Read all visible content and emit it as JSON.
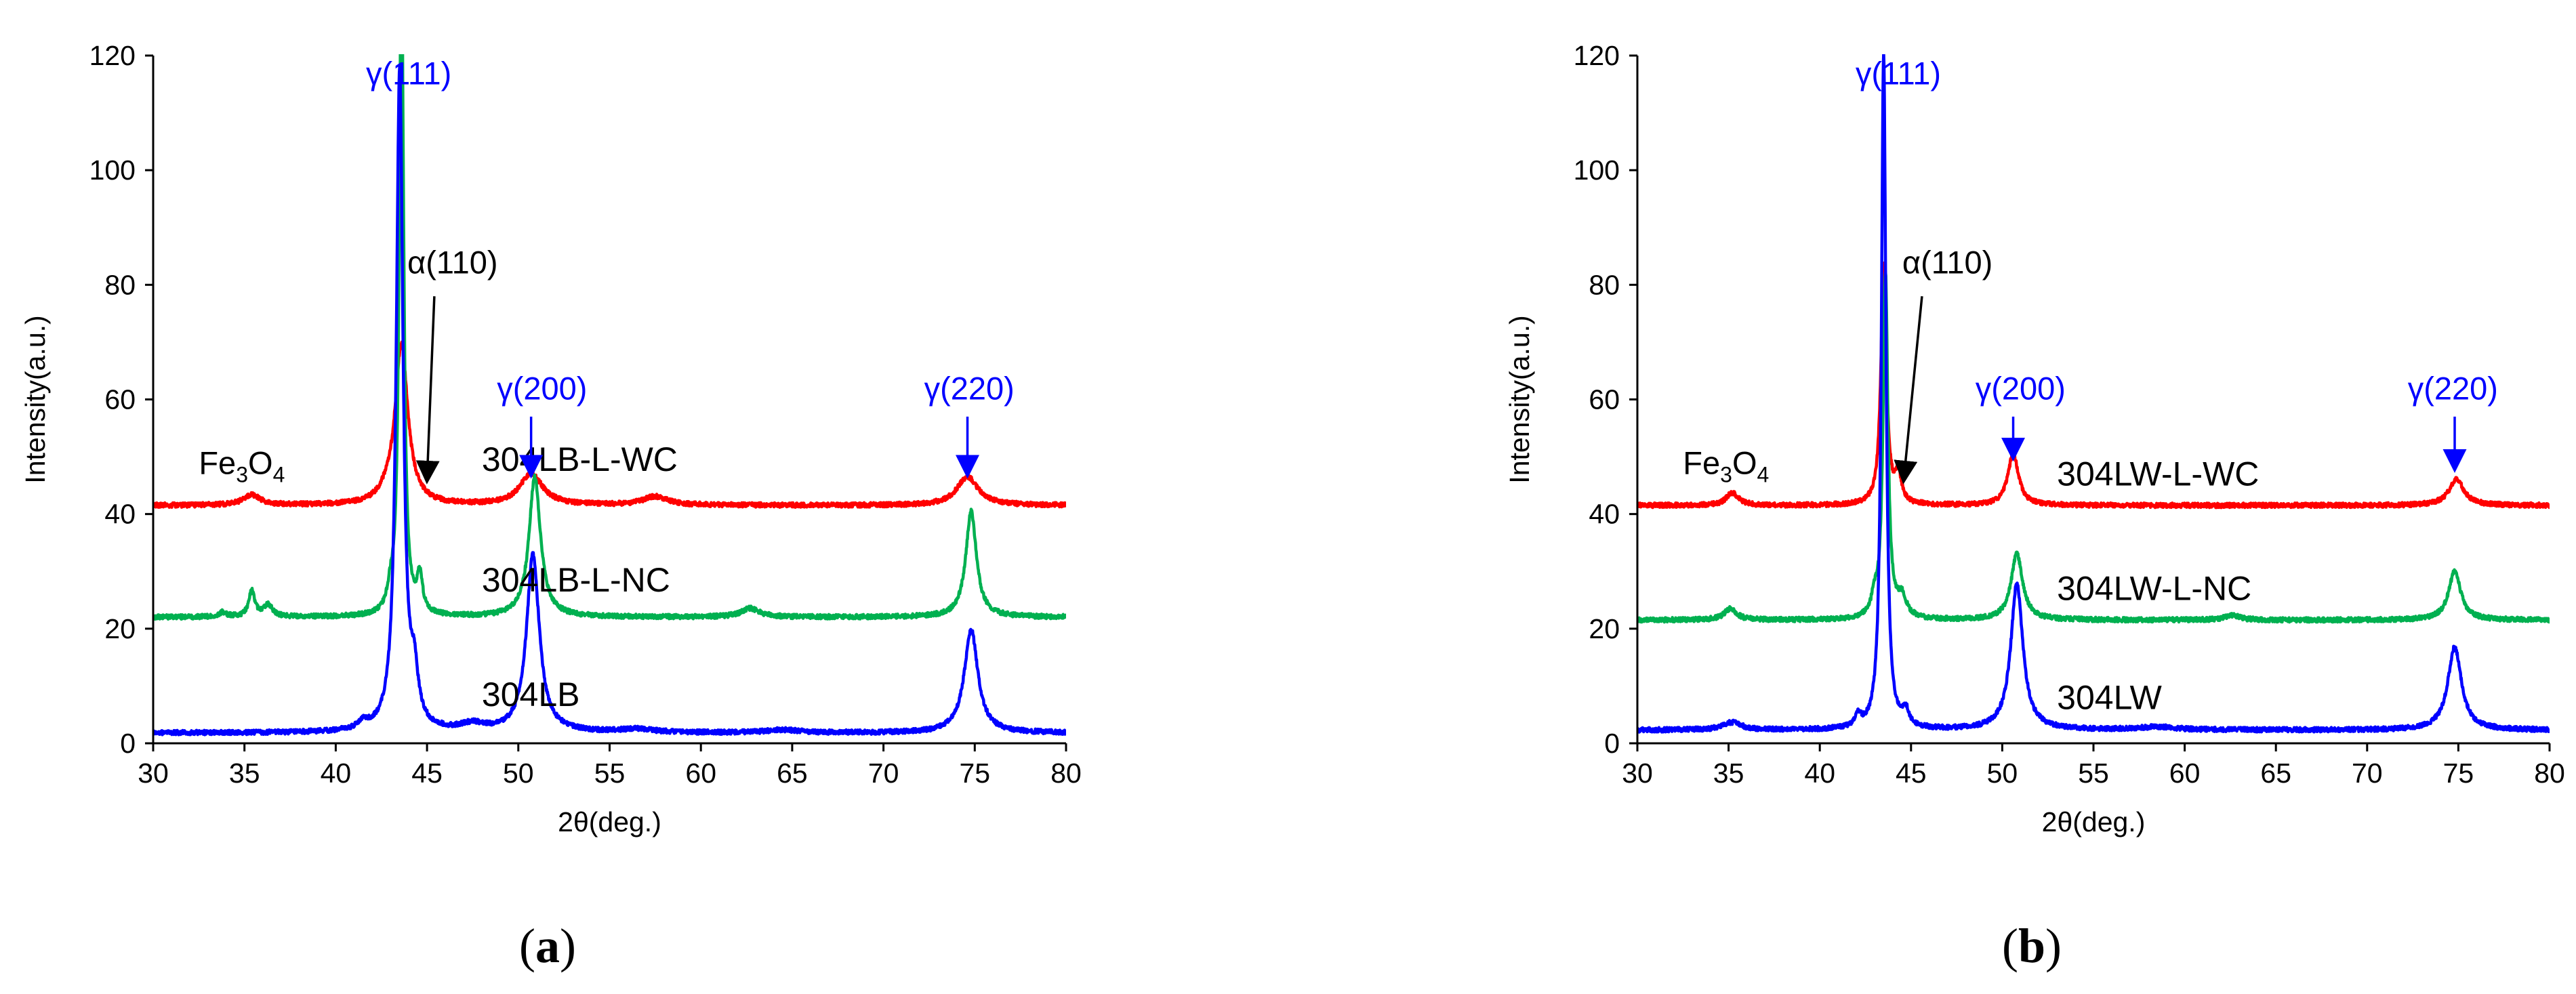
{
  "chart_data": [
    {
      "type": "line",
      "caption_letter": "a",
      "xlabel": "2θ(deg.)",
      "ylabel": "Intensity(a.u.)",
      "xlim": [
        30,
        80
      ],
      "ylim": [
        0,
        120
      ],
      "x_ticks": [
        "30",
        "35",
        "40",
        "45",
        "50",
        "55",
        "60",
        "65",
        "70",
        "75",
        "80"
      ],
      "y_ticks": [
        "0",
        "20",
        "40",
        "60",
        "80",
        "100",
        "120"
      ],
      "series": [
        {
          "name": "304LB-L-WC",
          "color": "#ff0000",
          "label_x": 48,
          "label_y": 47.5,
          "baseline": 41.5,
          "peaks": [
            [
              35.4,
              1.8,
              0.55
            ],
            [
              42.8,
              1.0,
              0.5
            ],
            [
              43.6,
              28.0,
              0.42
            ],
            [
              50.7,
              5.5,
              0.75
            ],
            [
              57.5,
              1.5,
              0.8
            ],
            [
              74.6,
              5.0,
              0.7
            ]
          ]
        },
        {
          "name": "304LB-L-NC",
          "color": "#00b050",
          "label_x": 48,
          "label_y": 26.5,
          "baseline": 22,
          "peaks": [
            [
              33.8,
              0.8,
              0.25
            ],
            [
              35.4,
              4.5,
              0.2
            ],
            [
              36.3,
              2.0,
              0.3
            ],
            [
              43.0,
              3.0,
              0.2
            ],
            [
              43.6,
              118.0,
              0.14
            ],
            [
              44.6,
              6.5,
              0.18
            ],
            [
              50.9,
              24.5,
              0.38
            ],
            [
              62.7,
              1.5,
              0.6
            ],
            [
              74.8,
              18.5,
              0.35
            ]
          ]
        },
        {
          "name": "304LB",
          "color": "#0000ff",
          "label_x": 48,
          "label_y": 6.5,
          "baseline": 1.8,
          "peaks": [
            [
              41.5,
              1.2,
              0.35
            ],
            [
              43.5,
              115.0,
              0.22
            ],
            [
              44.3,
              8.0,
              0.25
            ],
            [
              47.5,
              1.2,
              0.8
            ],
            [
              50.8,
              31.0,
              0.42
            ],
            [
              56.5,
              0.6,
              1.0
            ],
            [
              64.5,
              0.5,
              1.0
            ],
            [
              74.8,
              18.0,
              0.45
            ]
          ]
        }
      ],
      "annotations": [
        {
          "text": "γ(111)",
          "color": "#0000ff",
          "x": 44.0,
          "y": 115,
          "arrow": false
        },
        {
          "text": "α(110)",
          "color": "#000000",
          "x": 46.4,
          "y": 82,
          "arrow_from": [
            45.4,
            78
          ],
          "arrow_to": [
            45.0,
            46
          ]
        },
        {
          "text": "γ(200)",
          "color": "#0000ff",
          "x": 51.3,
          "y": 60,
          "arrow_from": [
            50.7,
            57
          ],
          "arrow_to": [
            50.7,
            47
          ]
        },
        {
          "text": "γ(220)",
          "color": "#0000ff",
          "x": 74.7,
          "y": 60,
          "arrow_from": [
            74.6,
            57
          ],
          "arrow_to": [
            74.6,
            47
          ]
        }
      ],
      "fe3o4_label": {
        "main": "Fe",
        "sub1": "3",
        "mid": "O",
        "sub2": "4",
        "x": 32.5,
        "y": 47
      }
    },
    {
      "type": "line",
      "caption_letter": "b",
      "xlabel": "2θ(deg.)",
      "ylabel": "Intensity(a.u.)",
      "xlim": [
        30,
        80
      ],
      "ylim": [
        0,
        120
      ],
      "x_ticks": [
        "30",
        "35",
        "40",
        "45",
        "50",
        "55",
        "60",
        "65",
        "70",
        "75",
        "80"
      ],
      "y_ticks": [
        "0",
        "20",
        "40",
        "60",
        "80",
        "100",
        "120"
      ],
      "series": [
        {
          "name": "304LW-L-WC",
          "color": "#ff0000",
          "label_x": 53,
          "label_y": 45,
          "baseline": 41.5,
          "peaks": [
            [
              35.2,
              2.2,
              0.4
            ],
            [
              43.5,
              42.0,
              0.18
            ],
            [
              44.3,
              5.0,
              0.2
            ],
            [
              50.6,
              9.0,
              0.35
            ],
            [
              74.9,
              4.5,
              0.5
            ]
          ]
        },
        {
          "name": "304LW-L-NC",
          "color": "#00b050",
          "label_x": 53,
          "label_y": 25,
          "baseline": 21.5,
          "peaks": [
            [
              35.1,
              2.0,
              0.4
            ],
            [
              43.0,
              3.0,
              0.2
            ],
            [
              43.6,
              60.0,
              0.16
            ],
            [
              44.5,
              3.5,
              0.3
            ],
            [
              50.8,
              11.5,
              0.38
            ],
            [
              62.6,
              0.8,
              0.5
            ],
            [
              74.8,
              8.5,
              0.4
            ]
          ]
        },
        {
          "name": "304LW",
          "color": "#0000ff",
          "label_x": 53,
          "label_y": 6,
          "baseline": 2.3,
          "peaks": [
            [
              35.2,
              1.3,
              0.6
            ],
            [
              42.1,
              2.0,
              0.2
            ],
            [
              43.5,
              118.0,
              0.15
            ],
            [
              44.7,
              2.8,
              0.2
            ],
            [
              50.8,
              25.5,
              0.4
            ],
            [
              58.5,
              0.5,
              1.2
            ],
            [
              74.8,
              14.5,
              0.45
            ]
          ]
        }
      ],
      "annotations": [
        {
          "text": "γ(111)",
          "color": "#0000ff",
          "x": 44.3,
          "y": 115,
          "arrow": false
        },
        {
          "text": "α(110)",
          "color": "#000000",
          "x": 47.0,
          "y": 82,
          "arrow_from": [
            45.6,
            78
          ],
          "arrow_to": [
            44.6,
            46
          ]
        },
        {
          "text": "γ(200)",
          "color": "#0000ff",
          "x": 51.0,
          "y": 60,
          "arrow_from": [
            50.6,
            57
          ],
          "arrow_to": [
            50.6,
            50
          ]
        },
        {
          "text": "γ(220)",
          "color": "#0000ff",
          "x": 74.7,
          "y": 60,
          "arrow_from": [
            74.8,
            57
          ],
          "arrow_to": [
            74.8,
            48
          ]
        }
      ],
      "fe3o4_label": {
        "main": "Fe",
        "sub1": "3",
        "mid": "O",
        "sub2": "4",
        "x": 32.5,
        "y": 47
      }
    }
  ]
}
